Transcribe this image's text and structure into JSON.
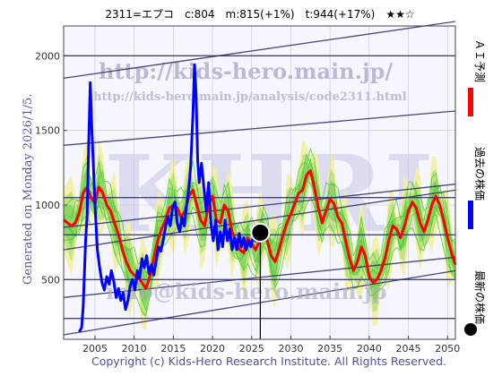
{
  "chart_data": {
    "type": "line",
    "title": "2311=エプコ　c:804　m:815(+1%)　t:944(+17%)　★★☆",
    "xlabel": "",
    "ylabel": "",
    "xlim": [
      2001,
      2051
    ],
    "ylim": [
      100,
      2200
    ],
    "x_ticks": [
      "2005",
      "2010",
      "2015",
      "2020",
      "2025",
      "2030",
      "2035",
      "2040",
      "2045",
      "2050"
    ],
    "y_ticks": [
      "500",
      "1000",
      "1500",
      "2000"
    ],
    "grid": true,
    "current_point": {
      "year": 2026.1,
      "value": 815
    },
    "legend": [
      {
        "label": "ＡＩ予測",
        "color": "#ff0000"
      },
      {
        "label": "過去の株価",
        "color": "#0000ff"
      },
      {
        "label": "最新の株価",
        "color": "#000000"
      }
    ],
    "series": [
      {
        "name": "過去の株価",
        "color": "#0000ff",
        "points": [
          [
            2003.0,
            150
          ],
          [
            2003.3,
            180
          ],
          [
            2003.5,
            320
          ],
          [
            2003.8,
            760
          ],
          [
            2004.0,
            930
          ],
          [
            2004.2,
            1420
          ],
          [
            2004.4,
            1820
          ],
          [
            2004.6,
            1500
          ],
          [
            2004.8,
            1260
          ],
          [
            2005.0,
            1000
          ],
          [
            2005.3,
            700
          ],
          [
            2005.6,
            580
          ],
          [
            2005.9,
            480
          ],
          [
            2006.2,
            430
          ],
          [
            2006.5,
            520
          ],
          [
            2006.8,
            470
          ],
          [
            2007.1,
            560
          ],
          [
            2007.4,
            490
          ],
          [
            2007.7,
            380
          ],
          [
            2008.0,
            440
          ],
          [
            2008.3,
            360
          ],
          [
            2008.6,
            410
          ],
          [
            2008.9,
            300
          ],
          [
            2009.2,
            360
          ],
          [
            2009.5,
            460
          ],
          [
            2009.8,
            500
          ],
          [
            2010.1,
            430
          ],
          [
            2010.4,
            560
          ],
          [
            2010.7,
            510
          ],
          [
            2011.0,
            640
          ],
          [
            2011.3,
            580
          ],
          [
            2011.6,
            660
          ],
          [
            2011.9,
            540
          ],
          [
            2012.2,
            600
          ],
          [
            2012.5,
            530
          ],
          [
            2012.8,
            620
          ],
          [
            2013.1,
            720
          ],
          [
            2013.4,
            690
          ],
          [
            2013.7,
            760
          ],
          [
            2014.0,
            850
          ],
          [
            2014.3,
            920
          ],
          [
            2014.6,
            860
          ],
          [
            2014.9,
            980
          ],
          [
            2015.2,
            1020
          ],
          [
            2015.5,
            880
          ],
          [
            2015.8,
            820
          ],
          [
            2016.1,
            920
          ],
          [
            2016.4,
            860
          ],
          [
            2016.7,
            1000
          ],
          [
            2017.0,
            1120
          ],
          [
            2017.2,
            1250
          ],
          [
            2017.5,
            1600
          ],
          [
            2017.7,
            1940
          ],
          [
            2017.9,
            1750
          ],
          [
            2018.1,
            1300
          ],
          [
            2018.3,
            1150
          ],
          [
            2018.6,
            1280
          ],
          [
            2018.9,
            1120
          ],
          [
            2019.2,
            960
          ],
          [
            2019.5,
            1150
          ],
          [
            2019.8,
            880
          ],
          [
            2020.1,
            760
          ],
          [
            2020.4,
            900
          ],
          [
            2020.7,
            700
          ],
          [
            2021.0,
            820
          ],
          [
            2021.3,
            720
          ],
          [
            2021.6,
            900
          ],
          [
            2021.9,
            760
          ],
          [
            2022.2,
            840
          ],
          [
            2022.5,
            700
          ],
          [
            2022.8,
            780
          ],
          [
            2023.1,
            700
          ],
          [
            2023.4,
            810
          ],
          [
            2023.7,
            720
          ],
          [
            2024.0,
            780
          ],
          [
            2024.3,
            700
          ],
          [
            2024.6,
            760
          ],
          [
            2024.9,
            720
          ],
          [
            2025.2,
            790
          ],
          [
            2025.5,
            760
          ],
          [
            2025.8,
            800
          ],
          [
            2026.1,
            815
          ]
        ]
      },
      {
        "name": "ＡＩ予測",
        "color": "#ff0000",
        "points": [
          [
            2001.0,
            900
          ],
          [
            2002.0,
            860
          ],
          [
            2002.5,
            880
          ],
          [
            2003.0,
            950
          ],
          [
            2003.5,
            1080
          ],
          [
            2004.0,
            1120
          ],
          [
            2004.5,
            1050
          ],
          [
            2005.0,
            1010
          ],
          [
            2005.5,
            1120
          ],
          [
            2006.0,
            1080
          ],
          [
            2006.5,
            1000
          ],
          [
            2007.0,
            960
          ],
          [
            2007.5,
            880
          ],
          [
            2008.0,
            800
          ],
          [
            2008.5,
            700
          ],
          [
            2009.0,
            620
          ],
          [
            2009.5,
            560
          ],
          [
            2010.0,
            530
          ],
          [
            2010.5,
            520
          ],
          [
            2011.0,
            480
          ],
          [
            2011.5,
            440
          ],
          [
            2012.0,
            520
          ],
          [
            2012.5,
            640
          ],
          [
            2013.0,
            760
          ],
          [
            2013.5,
            840
          ],
          [
            2014.0,
            900
          ],
          [
            2014.5,
            980
          ],
          [
            2015.0,
            1000
          ],
          [
            2015.5,
            980
          ],
          [
            2016.0,
            920
          ],
          [
            2016.5,
            960
          ],
          [
            2017.0,
            1060
          ],
          [
            2017.5,
            1100
          ],
          [
            2018.0,
            1000
          ],
          [
            2018.5,
            900
          ],
          [
            2019.0,
            860
          ],
          [
            2019.5,
            1000
          ],
          [
            2020.0,
            1060
          ],
          [
            2020.5,
            900
          ],
          [
            2021.0,
            880
          ],
          [
            2021.5,
            1000
          ],
          [
            2022.0,
            960
          ],
          [
            2022.5,
            820
          ],
          [
            2023.0,
            760
          ],
          [
            2023.5,
            700
          ],
          [
            2024.0,
            680
          ],
          [
            2024.5,
            780
          ],
          [
            2025.0,
            740
          ],
          [
            2025.5,
            700
          ],
          [
            2026.0,
            760
          ],
          [
            2026.5,
            820
          ],
          [
            2027.0,
            760
          ],
          [
            2027.5,
            660
          ],
          [
            2028.0,
            620
          ],
          [
            2028.5,
            700
          ],
          [
            2029.0,
            800
          ],
          [
            2029.5,
            880
          ],
          [
            2030.0,
            940
          ],
          [
            2030.5,
            1010
          ],
          [
            2031.0,
            1080
          ],
          [
            2031.5,
            1100
          ],
          [
            2032.0,
            1200
          ],
          [
            2032.5,
            1230
          ],
          [
            2033.0,
            1120
          ],
          [
            2033.5,
            980
          ],
          [
            2034.0,
            880
          ],
          [
            2034.5,
            960
          ],
          [
            2035.0,
            1040
          ],
          [
            2035.5,
            1010
          ],
          [
            2036.0,
            920
          ],
          [
            2036.5,
            880
          ],
          [
            2037.0,
            760
          ],
          [
            2037.5,
            640
          ],
          [
            2038.0,
            560
          ],
          [
            2038.5,
            620
          ],
          [
            2039.0,
            720
          ],
          [
            2039.5,
            660
          ],
          [
            2040.0,
            520
          ],
          [
            2040.5,
            480
          ],
          [
            2041.0,
            500
          ],
          [
            2041.5,
            560
          ],
          [
            2042.0,
            640
          ],
          [
            2042.5,
            760
          ],
          [
            2043.0,
            860
          ],
          [
            2043.5,
            840
          ],
          [
            2044.0,
            780
          ],
          [
            2044.5,
            860
          ],
          [
            2045.0,
            960
          ],
          [
            2045.5,
            1020
          ],
          [
            2046.0,
            980
          ],
          [
            2046.5,
            880
          ],
          [
            2047.0,
            820
          ],
          [
            2047.5,
            900
          ],
          [
            2048.0,
            1000
          ],
          [
            2048.5,
            1060
          ],
          [
            2049.0,
            1000
          ],
          [
            2049.5,
            900
          ],
          [
            2050.0,
            780
          ],
          [
            2050.5,
            680
          ],
          [
            2051.0,
            600
          ]
        ]
      }
    ]
  },
  "watermarks": {
    "url_main": "http://kids-hero.main.jp/",
    "url_analysis": "http://kids-hero.main.jp/analysis/code2311.html",
    "email": "info@kids-hero.main.jp",
    "big": "KHRI"
  },
  "side_text": "Generated on Monday 2026/1/5.",
  "footer": "Copyright (c) Kids-Hero Research Institute. All Rights Reserved.",
  "colors": {
    "plot_bg": "#f6f6ff",
    "band_green": "#44cc33",
    "band_yellow": "#f2f0a0",
    "guide_navy": "#2a2a66",
    "axis_text": "#333333"
  }
}
